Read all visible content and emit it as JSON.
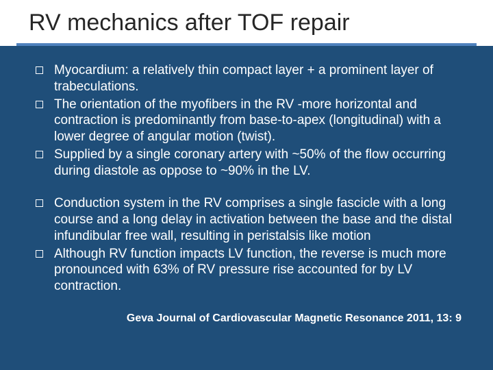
{
  "title": "RV mechanics after TOF repair",
  "colors": {
    "slide_background": "#1f4e79",
    "title_background": "#ffffff",
    "title_text": "#262626",
    "underline": "#4f81bd",
    "body_text": "#ffffff",
    "citation_text": "#ffffff"
  },
  "typography": {
    "title_fontsize": 34,
    "body_fontsize": 19,
    "citation_fontsize": 16,
    "citation_weight": "bold"
  },
  "group1": {
    "b0": "Myocardium: a relatively thin compact layer + a prominent layer of trabeculations.",
    "b1": "The orientation of the myofibers in the RV -more horizontal and contraction is predominantly from base-to-apex (longitudinal) with a lower degree of angular motion (twist).",
    "b2": "Supplied by a single coronary artery with ~50% of the flow occurring during diastole as oppose to ~90% in the LV."
  },
  "group2": {
    "b0": "Conduction system in the RV comprises a single fascicle with a long course and a long delay in activation between the base and the distal infundibular free wall, resulting in peristalsis like motion",
    "b1": "Although RV function impacts LV function, the reverse is much more pronounced with 63% of RV pressure rise accounted for by LV contraction."
  },
  "citation": "Geva Journal of Cardiovascular Magnetic Resonance 2011, 13: 9"
}
